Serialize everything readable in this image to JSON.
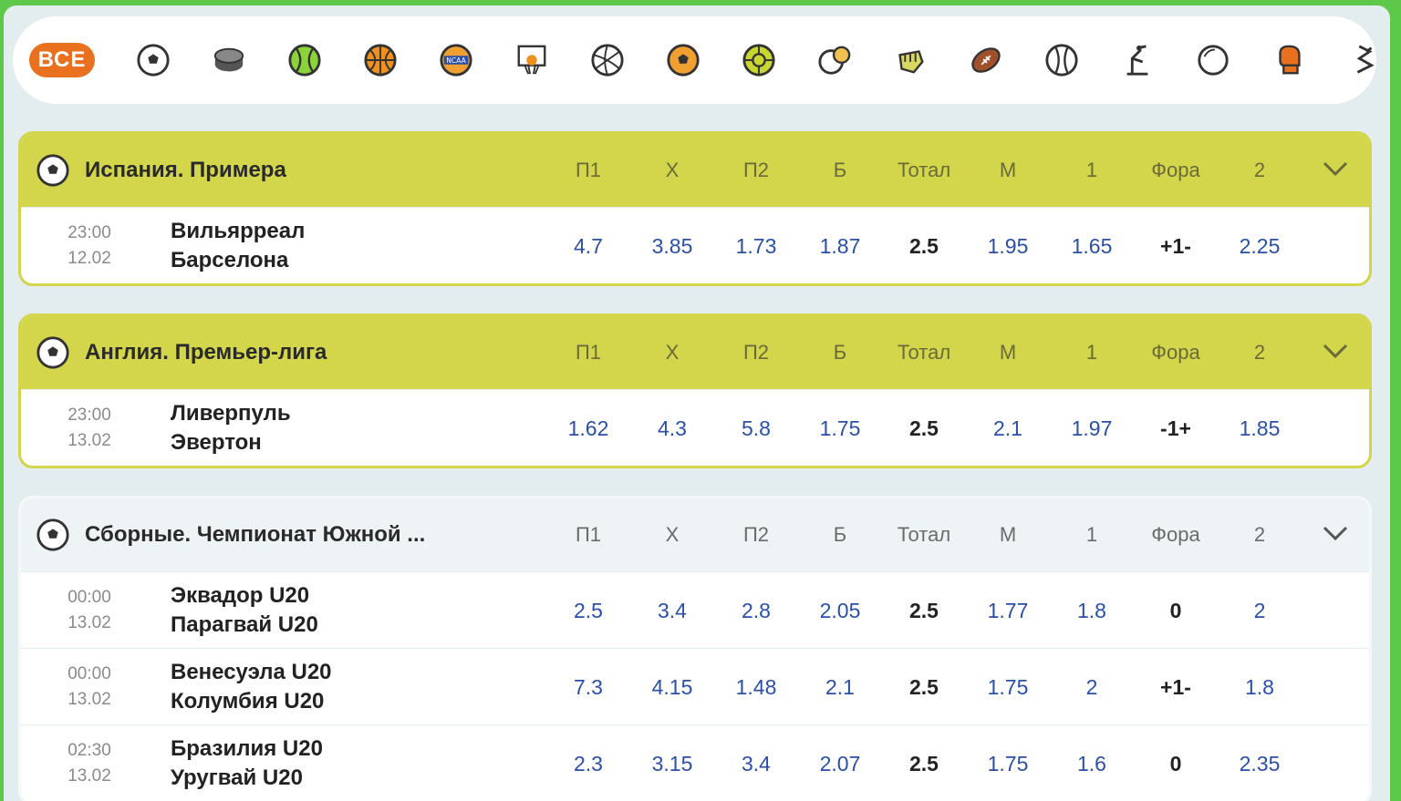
{
  "sports_bar": {
    "all_label": "ВСЕ",
    "icons": [
      "soccer-icon",
      "hockey-puck-icon",
      "tennis-icon",
      "basketball-icon",
      "ncaa-basketball-icon",
      "basketball-hoop-icon",
      "volleyball-icon",
      "futsal-icon",
      "handball-icon",
      "table-tennis-icon",
      "fist-icon",
      "american-football-icon",
      "baseball-icon",
      "athletics-icon",
      "circle-icon",
      "boxing-glove-icon",
      "esports-icon"
    ]
  },
  "columns": [
    "П1",
    "Х",
    "П2",
    "Б",
    "Тотал",
    "М",
    "1",
    "Фора",
    "2"
  ],
  "leagues": [
    {
      "title": "Испания. Примера",
      "active": true,
      "matches": [
        {
          "time": "23:00",
          "date": "12.02",
          "home": "Вильярреал",
          "away": "Барселона",
          "odds": [
            "4.7",
            "3.85",
            "1.73",
            "1.87",
            "2.5",
            "1.95",
            "1.65",
            "+1-",
            "2.25"
          ]
        }
      ]
    },
    {
      "title": "Англия. Премьер-лига",
      "active": true,
      "matches": [
        {
          "time": "23:00",
          "date": "13.02",
          "home": "Ливерпуль",
          "away": "Эвертон",
          "odds": [
            "1.62",
            "4.3",
            "5.8",
            "1.75",
            "2.5",
            "2.1",
            "1.97",
            "-1+",
            "1.85"
          ]
        }
      ]
    },
    {
      "title": "Сборные. Чемпионат Южной ...",
      "active": false,
      "matches": [
        {
          "time": "00:00",
          "date": "13.02",
          "home": "Эквадор U20",
          "away": "Парагвай U20",
          "odds": [
            "2.5",
            "3.4",
            "2.8",
            "2.05",
            "2.5",
            "1.77",
            "1.8",
            "0",
            "2"
          ]
        },
        {
          "time": "00:00",
          "date": "13.02",
          "home": "Венесуэла U20",
          "away": "Колумбия U20",
          "odds": [
            "7.3",
            "4.15",
            "1.48",
            "2.1",
            "2.5",
            "1.75",
            "2",
            "+1-",
            "1.8"
          ]
        },
        {
          "time": "02:30",
          "date": "13.02",
          "home": "Бразилия U20",
          "away": "Уругвай U20",
          "odds": [
            "2.3",
            "3.15",
            "3.4",
            "2.07",
            "2.5",
            "1.75",
            "1.6",
            "0",
            "2.35"
          ]
        }
      ]
    }
  ],
  "colors": {
    "accent": "#d3d64a",
    "all_button": "#e8701e",
    "odds": "#2a4fa8",
    "background": "#5ec84a"
  }
}
